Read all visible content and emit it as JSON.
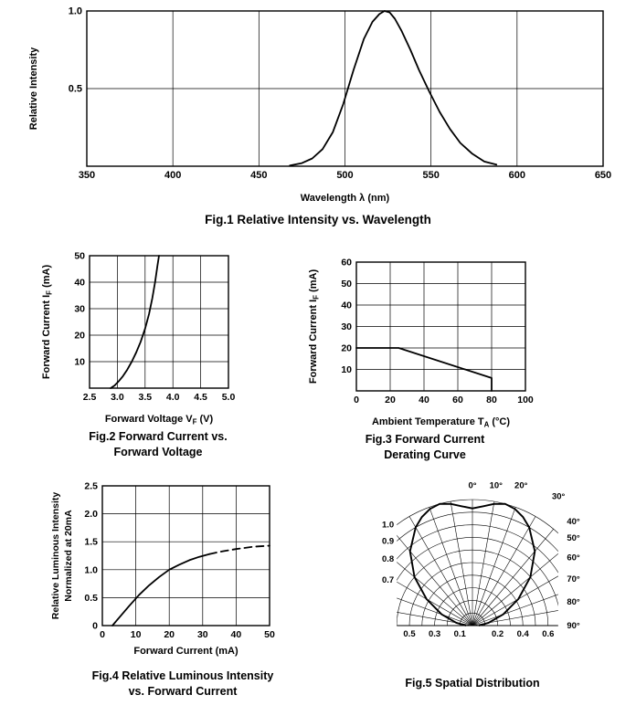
{
  "page": {
    "background": "#ffffff",
    "ink": "#000000"
  },
  "chart_data": [
    {
      "id": "fig1",
      "type": "line",
      "title": "Fig.1 Relative Intensity vs. Wavelength",
      "caption_lines": [
        "Fig.1 Relative Intensity vs. Wavelength"
      ],
      "xlabel": "Wavelength λ (nm)",
      "ylabel": "Relative Intensity",
      "xlim": [
        350,
        650
      ],
      "ylim": [
        0,
        1.0
      ],
      "xticks": [
        350,
        400,
        450,
        500,
        550,
        600,
        650
      ],
      "xtick_labels": [
        "350",
        "400",
        "450",
        "500",
        "550",
        "600",
        "650"
      ],
      "yticks": [
        0.5,
        1.0
      ],
      "ytick_labels": [
        "0.5",
        "1.0"
      ],
      "grid": true,
      "series": [
        {
          "name": "relative intensity spectrum",
          "dash": false,
          "x": [
            468,
            475,
            481,
            487,
            493,
            499,
            505,
            511,
            516,
            520,
            523,
            526,
            529,
            533,
            538,
            543,
            549,
            555,
            561,
            567,
            574,
            581,
            588
          ],
          "y": [
            0.005,
            0.02,
            0.05,
            0.11,
            0.22,
            0.4,
            0.62,
            0.82,
            0.93,
            0.98,
            1.0,
            0.99,
            0.95,
            0.87,
            0.75,
            0.62,
            0.48,
            0.35,
            0.24,
            0.15,
            0.08,
            0.03,
            0.01
          ]
        }
      ]
    },
    {
      "id": "fig2",
      "type": "line",
      "title": "Fig.2 Forward Current vs. Forward Voltage",
      "caption_lines": [
        "Fig.2 Forward Current vs.",
        "Forward Voltage"
      ],
      "xlabel": "Forward Voltage V~F~ (V)",
      "ylabel": "Forward Current I~F~ (mA)",
      "xlim": [
        2.5,
        5.0
      ],
      "ylim": [
        0,
        50
      ],
      "xticks": [
        2.5,
        3.0,
        3.5,
        4.0,
        4.5,
        5.0
      ],
      "xtick_labels": [
        "2.5",
        "3.0",
        "3.5",
        "4.0",
        "4.5",
        "5.0"
      ],
      "yticks": [
        10,
        20,
        30,
        40,
        50
      ],
      "ytick_labels": [
        "10",
        "20",
        "30",
        "40",
        "50"
      ],
      "grid": true,
      "series": [
        {
          "name": "forward current vs forward voltage",
          "dash": false,
          "x": [
            2.88,
            2.95,
            3.02,
            3.1,
            3.18,
            3.26,
            3.34,
            3.42,
            3.5,
            3.57,
            3.63,
            3.68,
            3.72,
            3.75
          ],
          "y": [
            0,
            1,
            2.5,
            4.5,
            7,
            10,
            13.5,
            17.5,
            22.5,
            28,
            34,
            40,
            46,
            50
          ]
        }
      ]
    },
    {
      "id": "fig3",
      "type": "line",
      "title": "Fig.3 Forward Current Derating Curve",
      "caption_lines": [
        "Fig.3 Forward Current",
        "Derating Curve"
      ],
      "xlabel": "Ambient Temperature T~A~ (°C)",
      "ylabel": "Forward Current I~F~ (mA)",
      "xlim": [
        0,
        100
      ],
      "ylim": [
        0,
        60
      ],
      "xticks": [
        0,
        20,
        40,
        60,
        80,
        100
      ],
      "xtick_labels": [
        "0",
        "20",
        "40",
        "60",
        "80",
        "100"
      ],
      "yticks": [
        10,
        20,
        30,
        40,
        50,
        60
      ],
      "ytick_labels": [
        "10",
        "20",
        "30",
        "40",
        "50",
        "60"
      ],
      "grid": true,
      "series": [
        {
          "name": "derating curve",
          "dash": false,
          "x": [
            0,
            25,
            80,
            80
          ],
          "y": [
            20,
            20,
            6,
            0
          ]
        }
      ]
    },
    {
      "id": "fig4",
      "type": "line",
      "title": "Fig.4 Relative Luminous Intensity vs. Forward Current",
      "caption_lines": [
        "Fig.4 Relative Luminous Intensity",
        "vs. Forward Current"
      ],
      "xlabel": "Forward Current (mA)",
      "ylabel_lines": [
        "Relative Luminous Intensity",
        "Normalized at 20mA"
      ],
      "xlim": [
        0,
        50
      ],
      "ylim": [
        0,
        2.5
      ],
      "xticks": [
        0,
        10,
        20,
        30,
        40,
        50
      ],
      "xtick_labels": [
        "0",
        "10",
        "20",
        "30",
        "40",
        "50"
      ],
      "yticks": [
        0,
        0.5,
        1.0,
        1.5,
        2.0,
        2.5
      ],
      "ytick_labels": [
        "0",
        "0.5",
        "1.0",
        "1.5",
        "2.0",
        "2.5"
      ],
      "grid": true,
      "series": [
        {
          "name": "relative luminous intensity (measured)",
          "dash": false,
          "x": [
            3,
            5,
            8,
            11,
            14,
            17,
            20,
            23,
            26,
            29,
            32
          ],
          "y": [
            0,
            0.14,
            0.35,
            0.55,
            0.72,
            0.87,
            1.0,
            1.09,
            1.17,
            1.23,
            1.28
          ]
        },
        {
          "name": "relative luminous intensity (extrapolated)",
          "dash": true,
          "x": [
            32,
            36,
            40,
            45,
            50
          ],
          "y": [
            1.28,
            1.33,
            1.37,
            1.41,
            1.43
          ]
        }
      ]
    },
    {
      "id": "fig5",
      "type": "polar-line",
      "title": "Fig.5 Spatial Distribution",
      "caption_lines": [
        "Fig.5 Spatial Distribution"
      ],
      "angle_ticks_deg": [
        0,
        10,
        20,
        30,
        40,
        50,
        60,
        70,
        80,
        90
      ],
      "angle_tick_labels": [
        "0°",
        "10°",
        "20°",
        "30°",
        "40°",
        "50°",
        "60°",
        "70°",
        "80°",
        "90°"
      ],
      "radial_ticks": [
        0.1,
        0.2,
        0.3,
        0.4,
        0.5,
        0.6,
        0.7,
        0.8,
        0.9,
        1.0
      ],
      "left_radial_labels": [
        "1.0",
        "0.9",
        "0.8",
        "0.7"
      ],
      "left_radial_values": [
        1.0,
        0.9,
        0.8,
        0.7
      ],
      "bottom_scale_labels": [
        "0.5",
        "0.3",
        "0.1",
        "0.2",
        "0.4",
        "0.6"
      ],
      "bottom_scale_values": [
        -0.5,
        -0.3,
        -0.1,
        0.2,
        0.4,
        0.6
      ],
      "pattern": {
        "angles_deg": [
          -90,
          -80,
          -70,
          -60,
          -50,
          -40,
          -30,
          -25,
          -20,
          -15,
          -10,
          -5,
          0,
          5,
          10,
          15,
          20,
          25,
          30,
          40,
          50,
          60,
          70,
          80,
          90
        ],
        "values": [
          0.05,
          0.13,
          0.26,
          0.42,
          0.6,
          0.77,
          0.9,
          0.95,
          0.985,
          1.0,
          0.98,
          0.95,
          0.93,
          0.95,
          0.98,
          1.0,
          0.985,
          0.95,
          0.9,
          0.77,
          0.6,
          0.42,
          0.26,
          0.13,
          0.05
        ]
      }
    }
  ]
}
